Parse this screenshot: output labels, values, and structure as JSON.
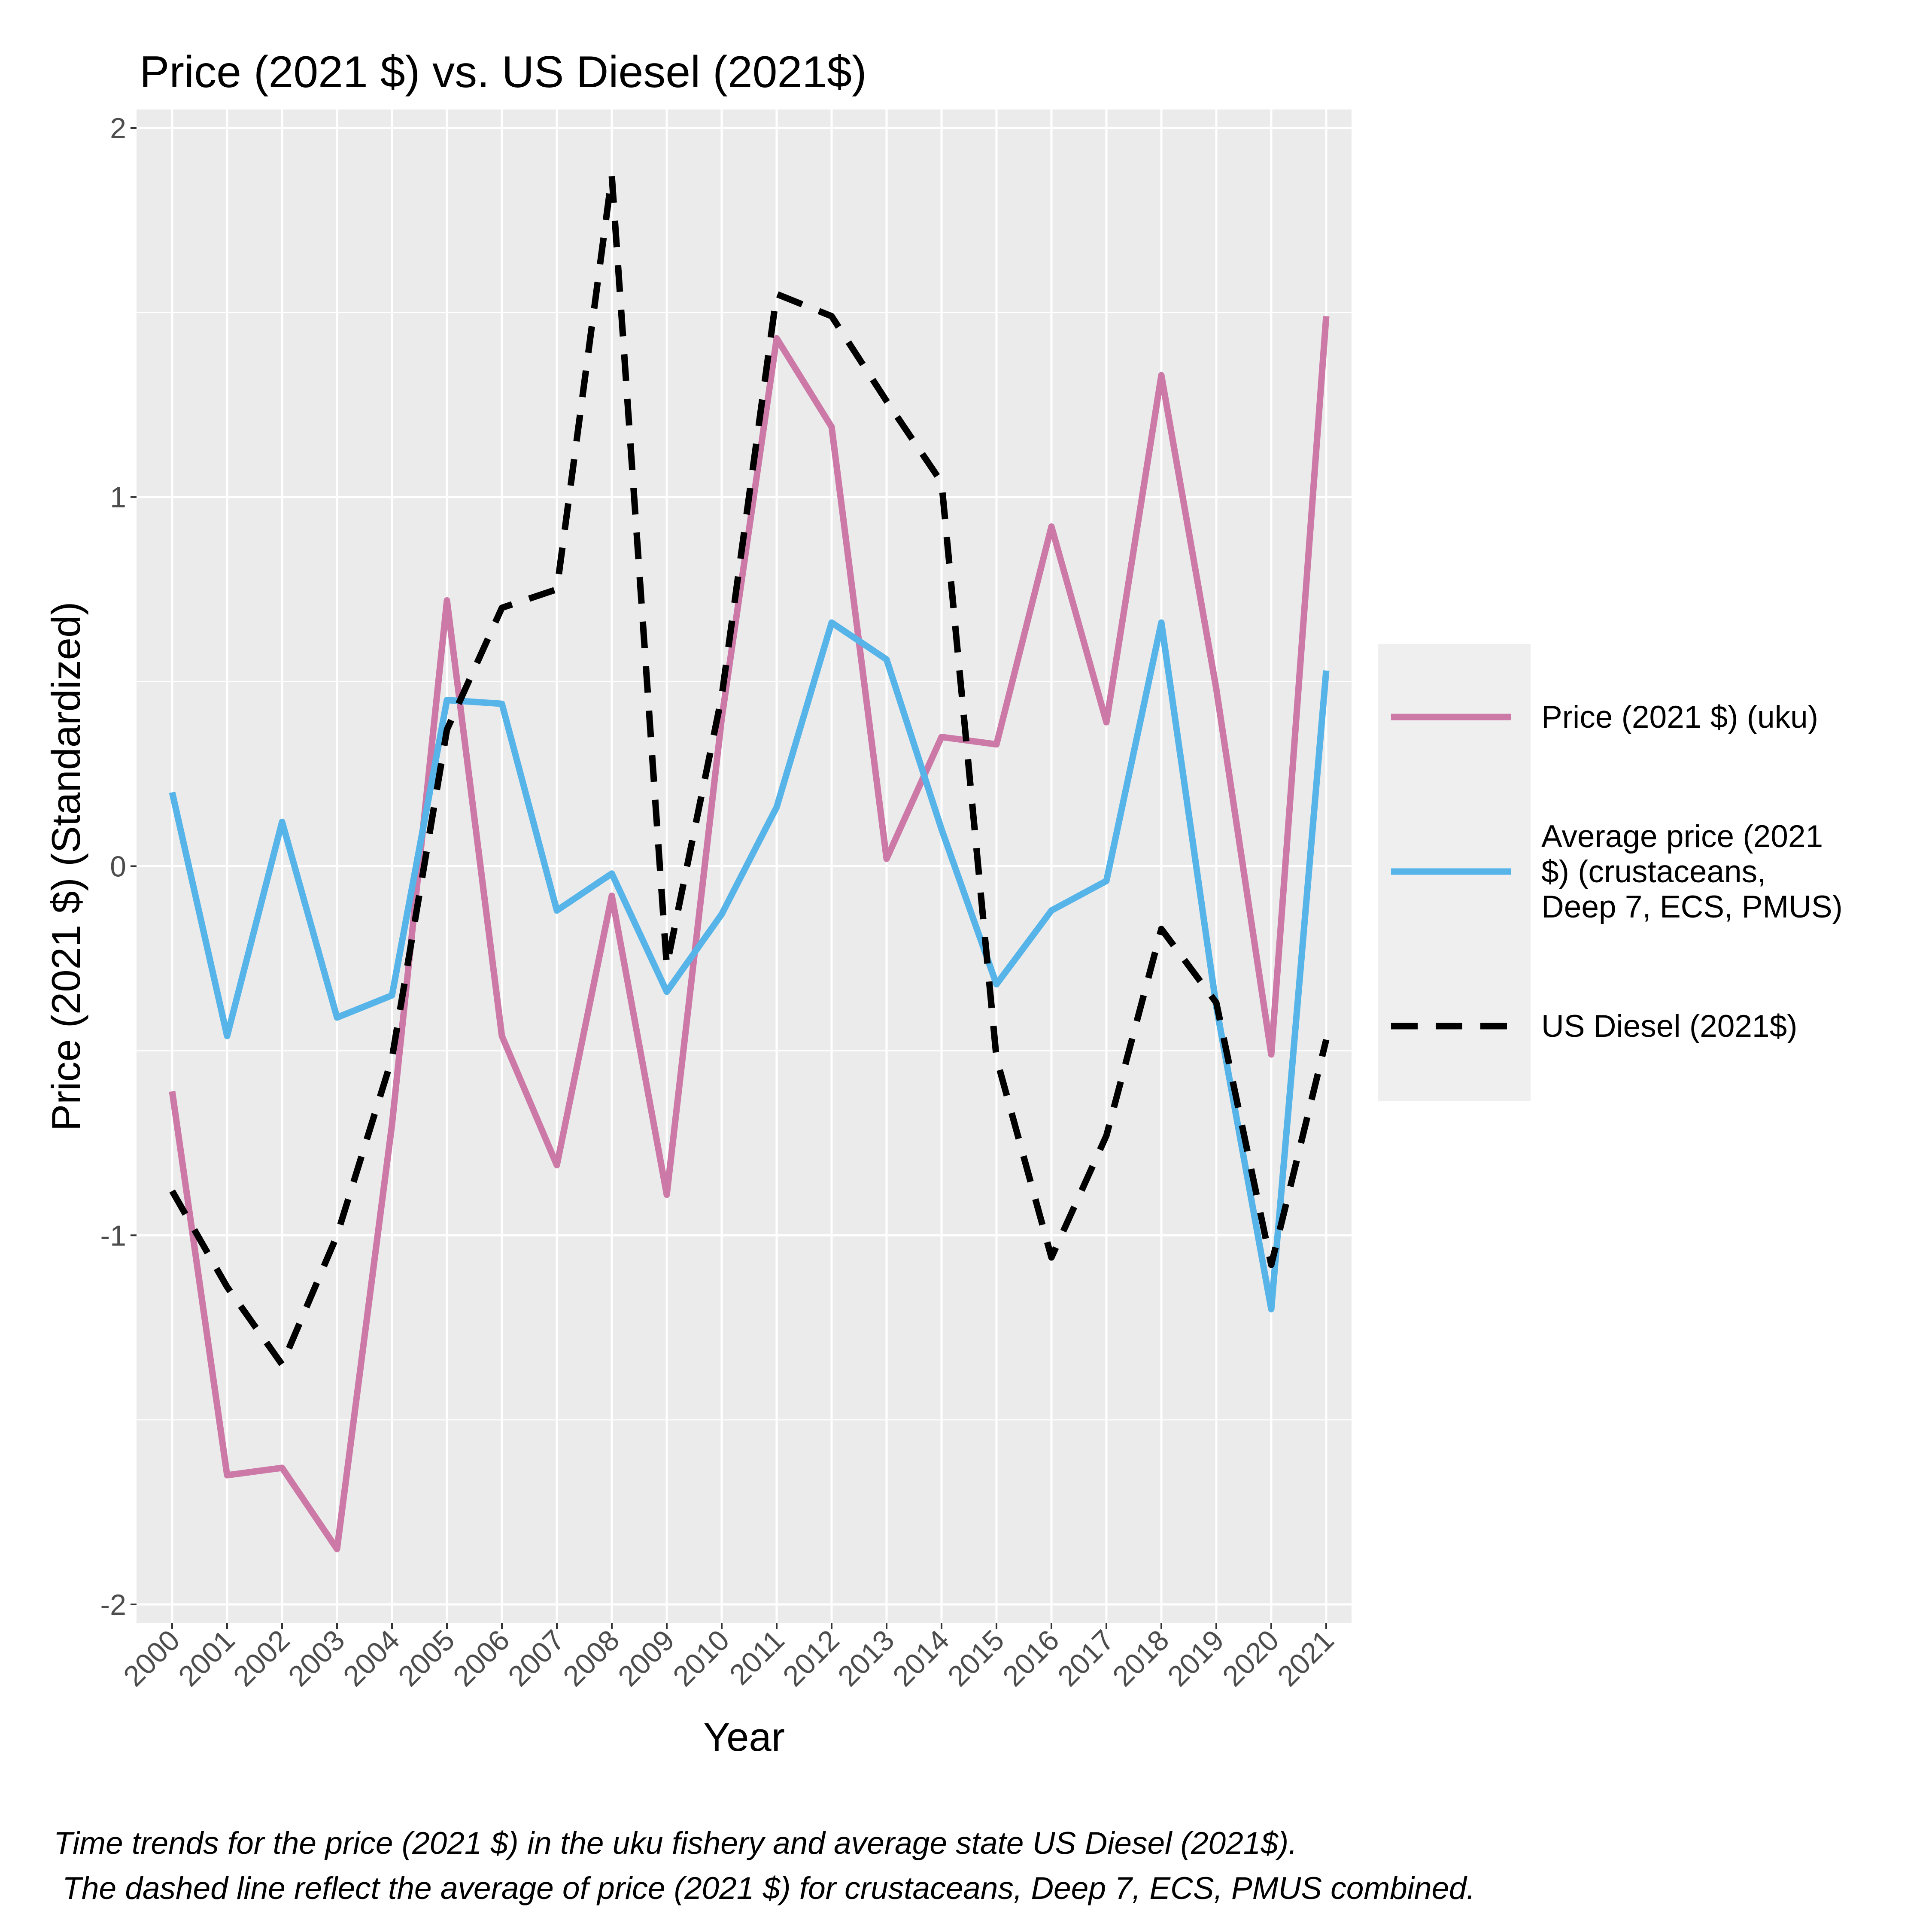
{
  "chart_data": {
    "type": "line",
    "title": "Price (2021 $) vs. US Diesel (2021$)",
    "xlabel": "Year",
    "ylabel": "Price (2021 $) (Standardized)",
    "x": [
      "2000",
      "2001",
      "2002",
      "2003",
      "2004",
      "2005",
      "2006",
      "2007",
      "2008",
      "2009",
      "2010",
      "2011",
      "2012",
      "2013",
      "2014",
      "2015",
      "2016",
      "2017",
      "2018",
      "2019",
      "2020",
      "2021"
    ],
    "ylim": [
      -2.05,
      2.05
    ],
    "yticks": [
      -2,
      -1,
      0,
      1,
      2
    ],
    "ytick_labels": [
      "-2",
      "-1",
      "0",
      "1",
      "2"
    ],
    "grid": true,
    "legend_position": "right",
    "series": [
      {
        "name": "Price (2021 $) (uku)",
        "color": "#CC79A7",
        "dash": "solid",
        "values": [
          -0.61,
          -1.65,
          -1.63,
          -1.85,
          -0.7,
          0.72,
          -0.46,
          -0.81,
          -0.08,
          -0.89,
          0.4,
          1.43,
          1.19,
          0.02,
          0.35,
          0.33,
          0.92,
          0.39,
          1.33,
          0.48,
          -0.51,
          1.49
        ]
      },
      {
        "name": "Average price (2021 $) (crustaceans, Deep 7, ECS, PMUS)",
        "legend_lines": [
          "Average price (2021",
          "$) (crustaceans,",
          "Deep 7, ECS, PMUS)"
        ],
        "color": "#56B4E9",
        "dash": "solid",
        "values": [
          0.2,
          -0.46,
          0.12,
          -0.41,
          -0.35,
          0.45,
          0.44,
          -0.12,
          -0.02,
          -0.34,
          -0.13,
          0.16,
          0.66,
          0.56,
          0.1,
          -0.32,
          -0.12,
          -0.04,
          0.66,
          -0.38,
          -1.2,
          0.53
        ]
      },
      {
        "name": "US Diesel (2021$)",
        "color": "#000000",
        "dash": "dashed",
        "values": [
          -0.88,
          -1.14,
          -1.35,
          -1.0,
          -0.52,
          0.37,
          0.7,
          0.75,
          1.87,
          -0.27,
          0.46,
          1.55,
          1.49,
          1.26,
          1.04,
          -0.52,
          -1.06,
          -0.73,
          -0.17,
          -0.37,
          -1.08,
          -0.47
        ]
      }
    ]
  },
  "caption": {
    "line1": "Time trends for the price (2021 $) in the uku fishery and average state US Diesel (2021$).",
    "line2": " The dashed line reflect the average of price (2021 $) for crustaceans, Deep 7, ECS, PMUS combined."
  }
}
